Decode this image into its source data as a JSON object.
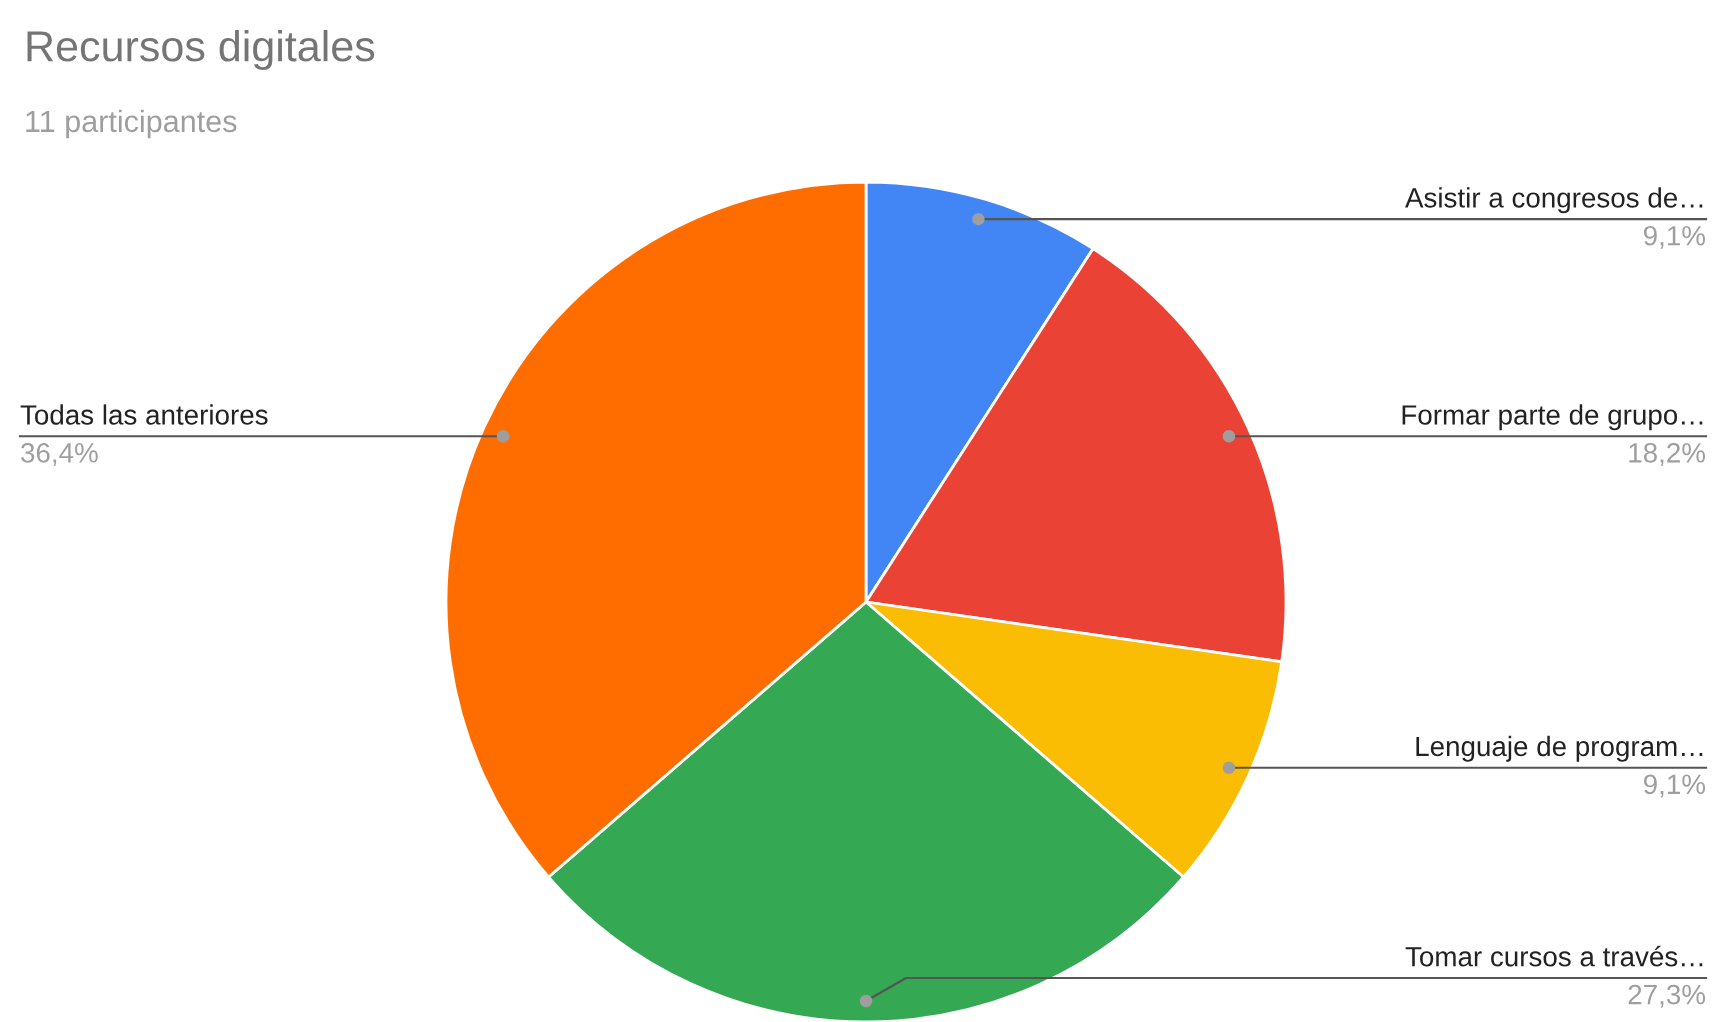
{
  "chart_data": {
    "type": "pie",
    "title": "Recursos digitales",
    "subtitle": "11 participantes",
    "categories": [
      "Asistir a congresos de…",
      "Formar parte de grupo…",
      "Lenguaje de program…",
      "Tomar cursos a través…",
      "Todas las anteriores"
    ],
    "values": [
      9.1,
      18.2,
      9.1,
      27.3,
      36.4
    ],
    "colors": [
      "#4285f4",
      "#ea4335",
      "#fbbc04",
      "#34a853",
      "#ff6d01"
    ],
    "value_labels": [
      "9,1%",
      "18,2%",
      "9,1%",
      "27,3%",
      "36,4%"
    ]
  }
}
